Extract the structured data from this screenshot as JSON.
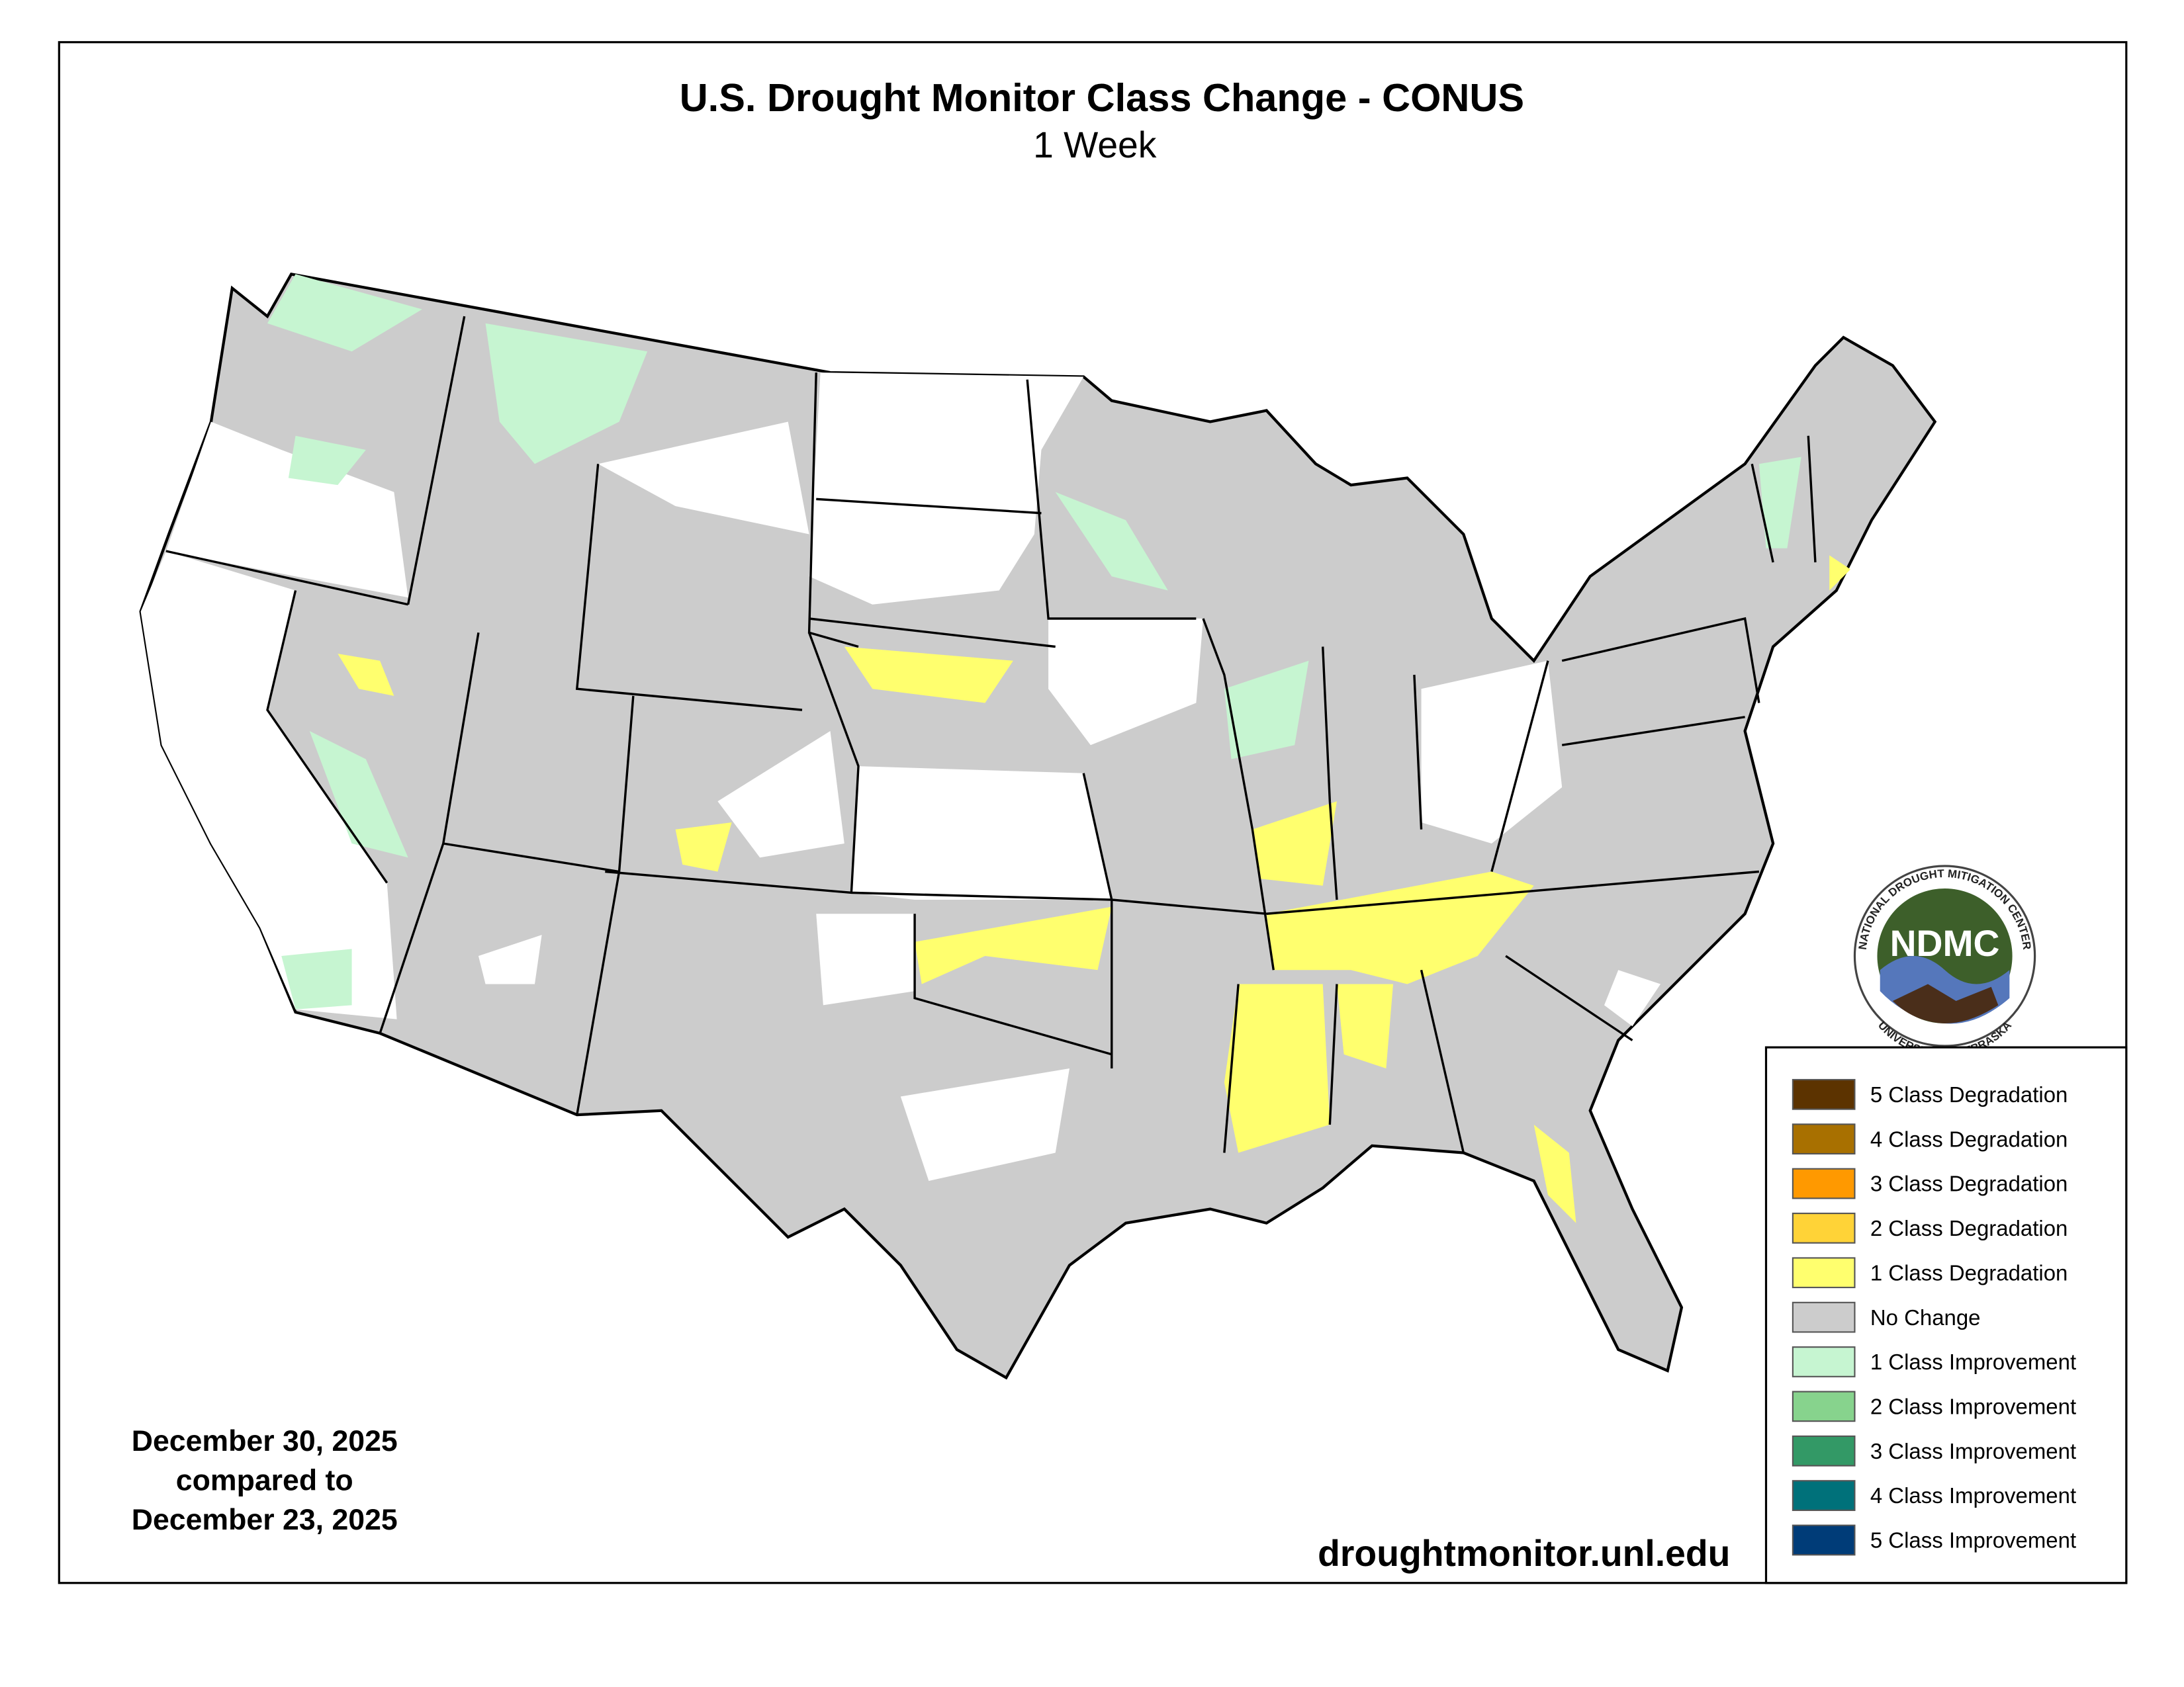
{
  "header": {
    "title": "U.S. Drought Monitor Class Change - CONUS",
    "subtitle": "1 Week"
  },
  "dates": [
    "December 30, 2025",
    "compared to",
    "December 23, 2025"
  ],
  "source": "droughtmonitor.unl.edu",
  "logo": {
    "name": "NDMC",
    "top": "NATIONAL DROUGHT MITIGATION CENTER",
    "bottom": "UNIVERSITY OF NEBRASKA"
  },
  "legend": {
    "items": [
      {
        "label": "5 Class Degradation",
        "color": "#5c3300"
      },
      {
        "label": "4 Class Degradation",
        "color": "#a87000"
      },
      {
        "label": "3 Class Degradation",
        "color": "#ff9900"
      },
      {
        "label": "2 Class Degradation",
        "color": "#ffd337"
      },
      {
        "label": "1 Class Degradation",
        "color": "#ffff6e"
      },
      {
        "label": "No Change",
        "color": "#cccccc"
      },
      {
        "label": "1 Class Improvement",
        "color": "#c6f5d1"
      },
      {
        "label": "2 Class Improvement",
        "color": "#87d38d"
      },
      {
        "label": "3 Class Improvement",
        "color": "#339966"
      },
      {
        "label": "4 Class Improvement",
        "color": "#00717a"
      },
      {
        "label": "5 Class Improvement",
        "color": "#003c78"
      }
    ]
  }
}
